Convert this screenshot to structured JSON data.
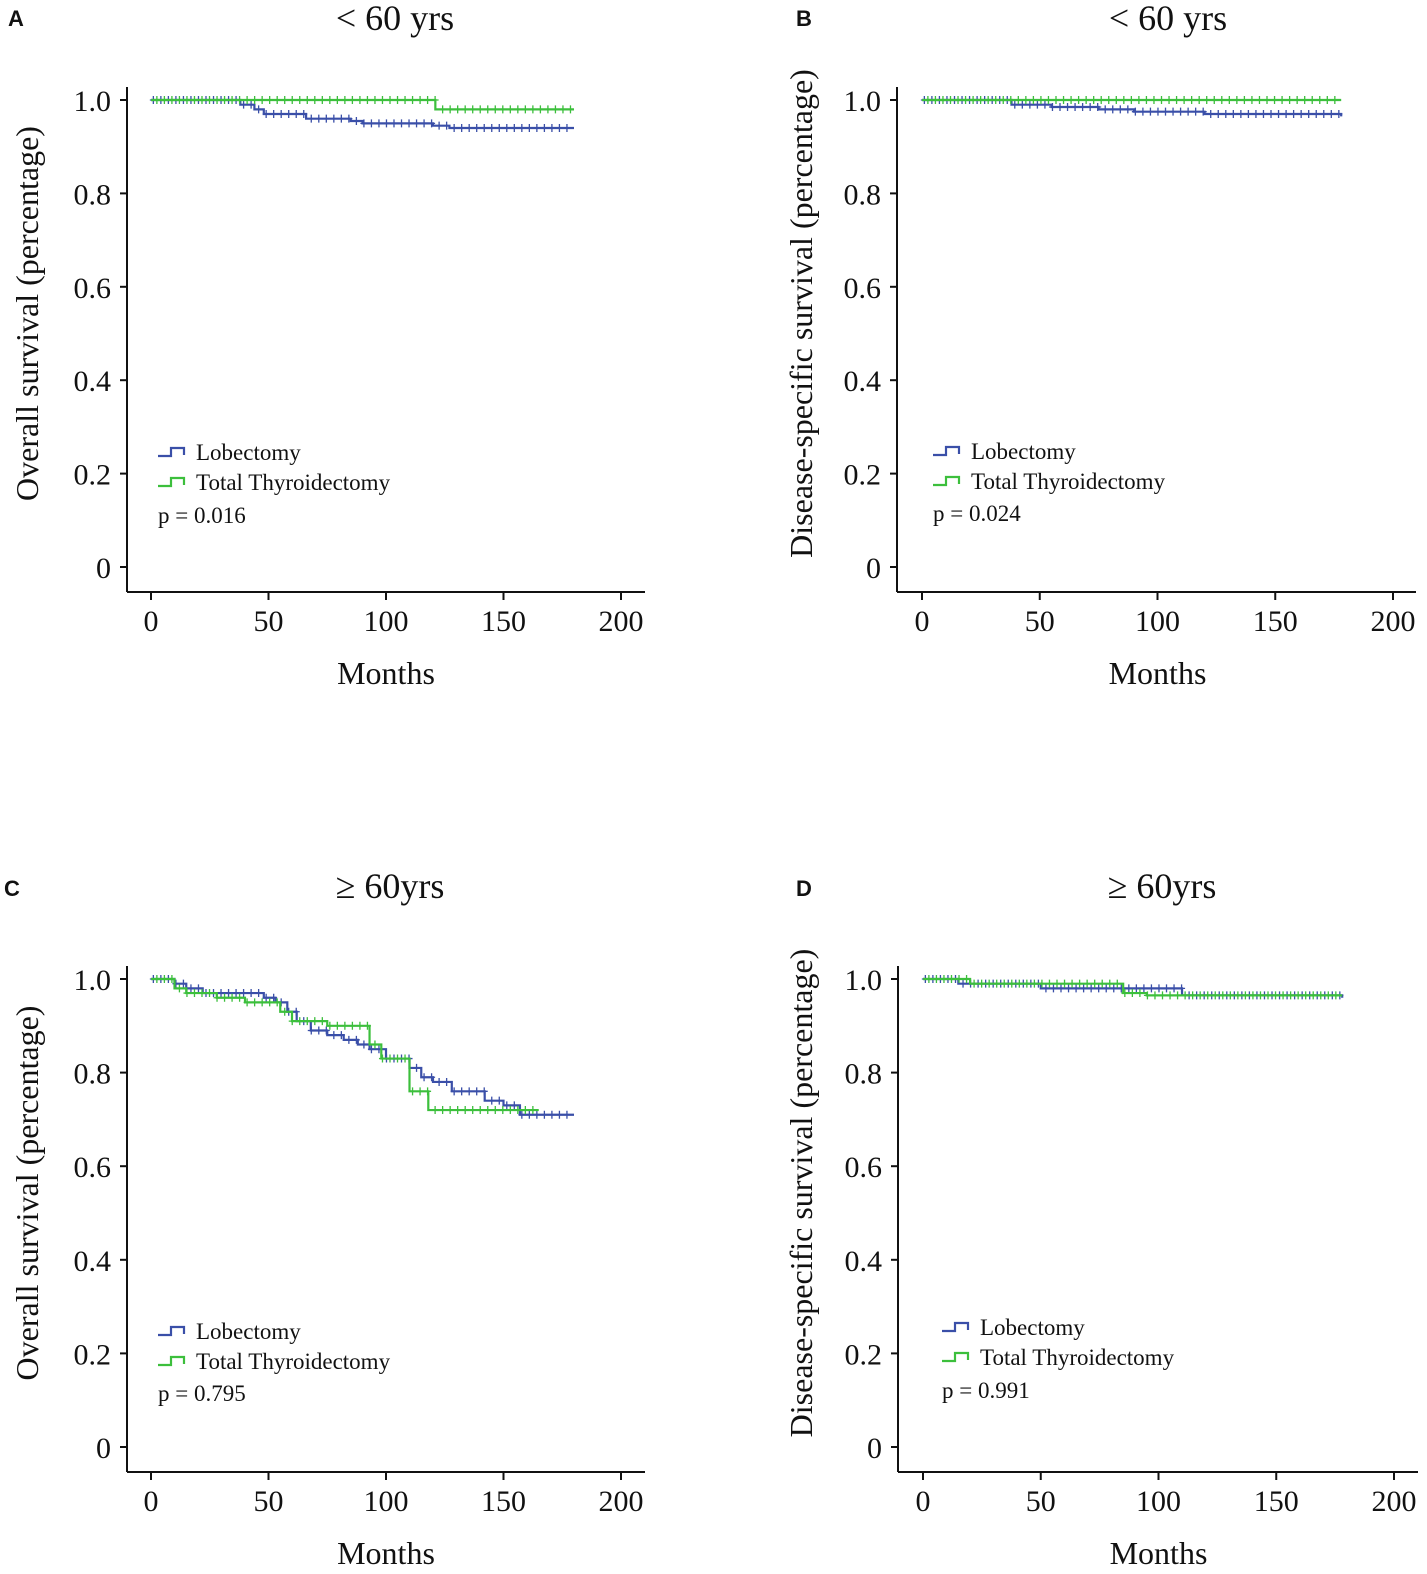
{
  "figure": {
    "panels": [
      "A",
      "B",
      "C",
      "D"
    ]
  },
  "colors": {
    "lobectomy": "#3a4fa8",
    "total_thyroidectomy": "#3cbf3c",
    "axis": "#111111"
  },
  "icons": {
    "legend_marker": "step-line-icon",
    "censor_marker": "plus-tick-icon"
  },
  "chart_data": [
    {
      "panel_label": "A",
      "type": "line",
      "subtype": "kaplan-meier",
      "title": "< 60 yrs",
      "xlabel": "Months",
      "ylabel": "Overall survival (percentage)",
      "xlim": [
        0,
        200
      ],
      "ylim": [
        0,
        1.0
      ],
      "xticks": [
        0,
        50,
        100,
        150,
        200
      ],
      "yticks": [
        0,
        0.2,
        0.4,
        0.6,
        0.8,
        1.0
      ],
      "ytick_labels": [
        "0",
        "0.2",
        "0.4",
        "0.6",
        "0.8",
        "1.0"
      ],
      "legend": [
        "Lobectomy",
        "Total Thyroidectomy"
      ],
      "legend_position": "bottom-left",
      "pvalue": "p = 0.016",
      "series": [
        {
          "name": "Lobectomy",
          "x": [
            0,
            33,
            38,
            44,
            48,
            60,
            66,
            75,
            85,
            90,
            97,
            120,
            127,
            130,
            145,
            180
          ],
          "y": [
            1.0,
            1.0,
            0.99,
            0.98,
            0.97,
            0.97,
            0.96,
            0.96,
            0.955,
            0.95,
            0.95,
            0.945,
            0.94,
            0.94,
            0.94,
            0.94
          ]
        },
        {
          "name": "Total Thyroidectomy",
          "x": [
            0,
            121,
            180
          ],
          "y": [
            1.0,
            0.98,
            0.98
          ]
        }
      ]
    },
    {
      "panel_label": "B",
      "type": "line",
      "subtype": "kaplan-meier",
      "title": "< 60 yrs",
      "xlabel": "Months",
      "ylabel": "Disease-specific survival (percentage)",
      "xlim": [
        0,
        200
      ],
      "ylim": [
        0,
        1.0
      ],
      "xticks": [
        0,
        50,
        100,
        150,
        200
      ],
      "yticks": [
        0,
        0.2,
        0.4,
        0.6,
        0.8,
        1.0
      ],
      "ytick_labels": [
        "0",
        "0.2",
        "0.4",
        "0.6",
        "0.8",
        "1.0"
      ],
      "legend": [
        "Lobectomy",
        "Total Thyroidectomy"
      ],
      "legend_position": "bottom-left",
      "pvalue": "p = 0.024",
      "series": [
        {
          "name": "Lobectomy",
          "x": [
            0,
            32,
            38,
            55,
            75,
            90,
            120,
            178
          ],
          "y": [
            1.0,
            1.0,
            0.99,
            0.985,
            0.98,
            0.975,
            0.97,
            0.965
          ]
        },
        {
          "name": "Total Thyroidectomy",
          "x": [
            0,
            178
          ],
          "y": [
            1.0,
            1.0
          ]
        }
      ]
    },
    {
      "panel_label": "C",
      "type": "line",
      "subtype": "kaplan-meier",
      "title": "≥ 60yrs",
      "xlabel": "Months",
      "ylabel": "Overall survival (percentage)",
      "xlim": [
        0,
        200
      ],
      "ylim": [
        0,
        1.0
      ],
      "xticks": [
        0,
        50,
        100,
        150,
        200
      ],
      "yticks": [
        0,
        0.2,
        0.4,
        0.6,
        0.8,
        1.0
      ],
      "ytick_labels": [
        "0",
        "0.2",
        "0.4",
        "0.6",
        "0.8",
        "1.0"
      ],
      "legend": [
        "Lobectomy",
        "Total Thyroidectomy"
      ],
      "legend_position": "bottom-left",
      "pvalue": "p = 0.795",
      "series": [
        {
          "name": "Lobectomy",
          "x": [
            0,
            10,
            15,
            22,
            48,
            53,
            58,
            62,
            68,
            75,
            82,
            88,
            93,
            100,
            110,
            115,
            120,
            128,
            142,
            150,
            157,
            180
          ],
          "y": [
            1.0,
            0.99,
            0.98,
            0.97,
            0.96,
            0.95,
            0.93,
            0.91,
            0.89,
            0.88,
            0.87,
            0.86,
            0.85,
            0.83,
            0.81,
            0.79,
            0.78,
            0.76,
            0.74,
            0.73,
            0.71,
            0.71
          ]
        },
        {
          "name": "Total Thyroidectomy",
          "x": [
            0,
            10,
            15,
            28,
            40,
            55,
            60,
            70,
            75,
            85,
            93,
            98,
            110,
            118,
            125,
            165
          ],
          "y": [
            1.0,
            0.98,
            0.97,
            0.96,
            0.95,
            0.93,
            0.91,
            0.91,
            0.9,
            0.9,
            0.86,
            0.83,
            0.76,
            0.72,
            0.72,
            0.72
          ]
        }
      ]
    },
    {
      "panel_label": "D",
      "type": "line",
      "subtype": "kaplan-meier",
      "title": "≥ 60yrs",
      "xlabel": "Months",
      "ylabel": "Disease-specific survival (percentage)",
      "xlim": [
        0,
        200
      ],
      "ylim": [
        0,
        1.0
      ],
      "xticks": [
        0,
        50,
        100,
        150,
        200
      ],
      "yticks": [
        0,
        0.2,
        0.4,
        0.6,
        0.8,
        1.0
      ],
      "ytick_labels": [
        "0",
        "0.2",
        "0.4",
        "0.6",
        "0.8",
        "1.0"
      ],
      "legend": [
        "Lobectomy",
        "Total Thyroidectomy"
      ],
      "legend_position": "bottom-left",
      "pvalue": "p = 0.991",
      "series": [
        {
          "name": "Lobectomy",
          "x": [
            0,
            15,
            50,
            110,
            178
          ],
          "y": [
            1.0,
            0.99,
            0.98,
            0.965,
            0.96
          ]
        },
        {
          "name": "Total Thyroidectomy",
          "x": [
            0,
            20,
            85,
            95,
            178
          ],
          "y": [
            1.0,
            0.99,
            0.97,
            0.965,
            0.965
          ]
        }
      ]
    }
  ]
}
